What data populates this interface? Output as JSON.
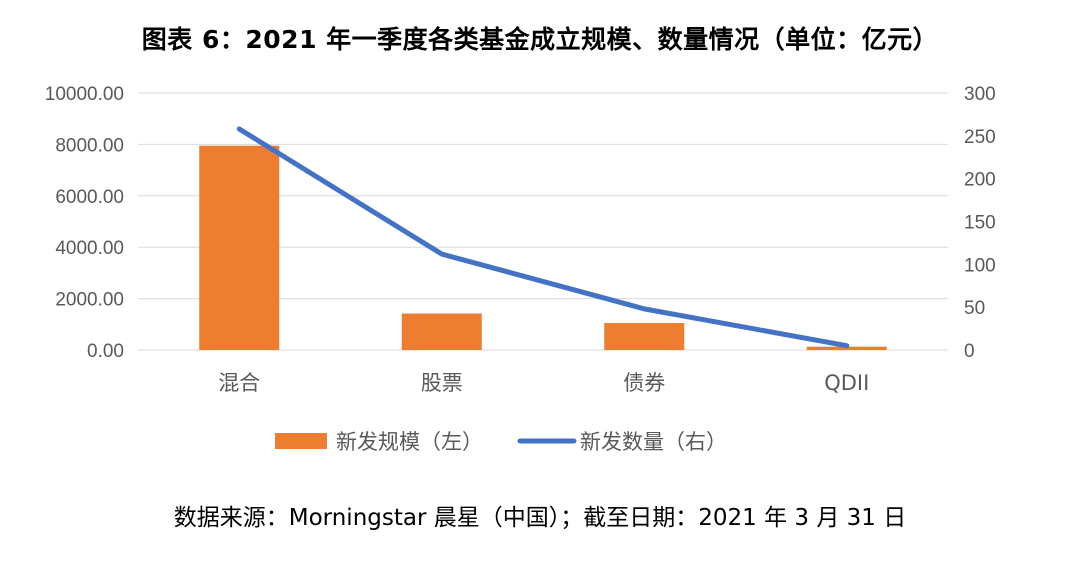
{
  "title": "图表 6：2021 年一季度各类基金成立规模、数量情况（单位：亿元）",
  "source": "数据来源：Morningstar 晨星（中国）；截至日期：2021 年 3 月 31 日",
  "colors": {
    "bar": "#ED7D31",
    "line": "#4472C4",
    "grid": "#D9D9D9",
    "tick": "#595959"
  },
  "chart_data": {
    "type": "bar",
    "categories": [
      "混合",
      "股票",
      "债券",
      "QDII"
    ],
    "series": [
      {
        "name": "新发规模（左）",
        "type": "bar",
        "axis": "left",
        "values": [
          7950,
          1420,
          1050,
          130
        ]
      },
      {
        "name": "新发数量（右）",
        "type": "line",
        "axis": "right",
        "values": [
          258,
          112,
          48,
          5
        ]
      }
    ],
    "y_left": {
      "min": 0,
      "max": 10000,
      "ticks": [
        "0.00",
        "2000.00",
        "4000.00",
        "6000.00",
        "8000.00",
        "10000.00"
      ]
    },
    "y_right": {
      "min": 0,
      "max": 300,
      "ticks": [
        "0",
        "50",
        "100",
        "150",
        "200",
        "250",
        "300"
      ]
    },
    "grid": true,
    "legend": "bottom"
  }
}
